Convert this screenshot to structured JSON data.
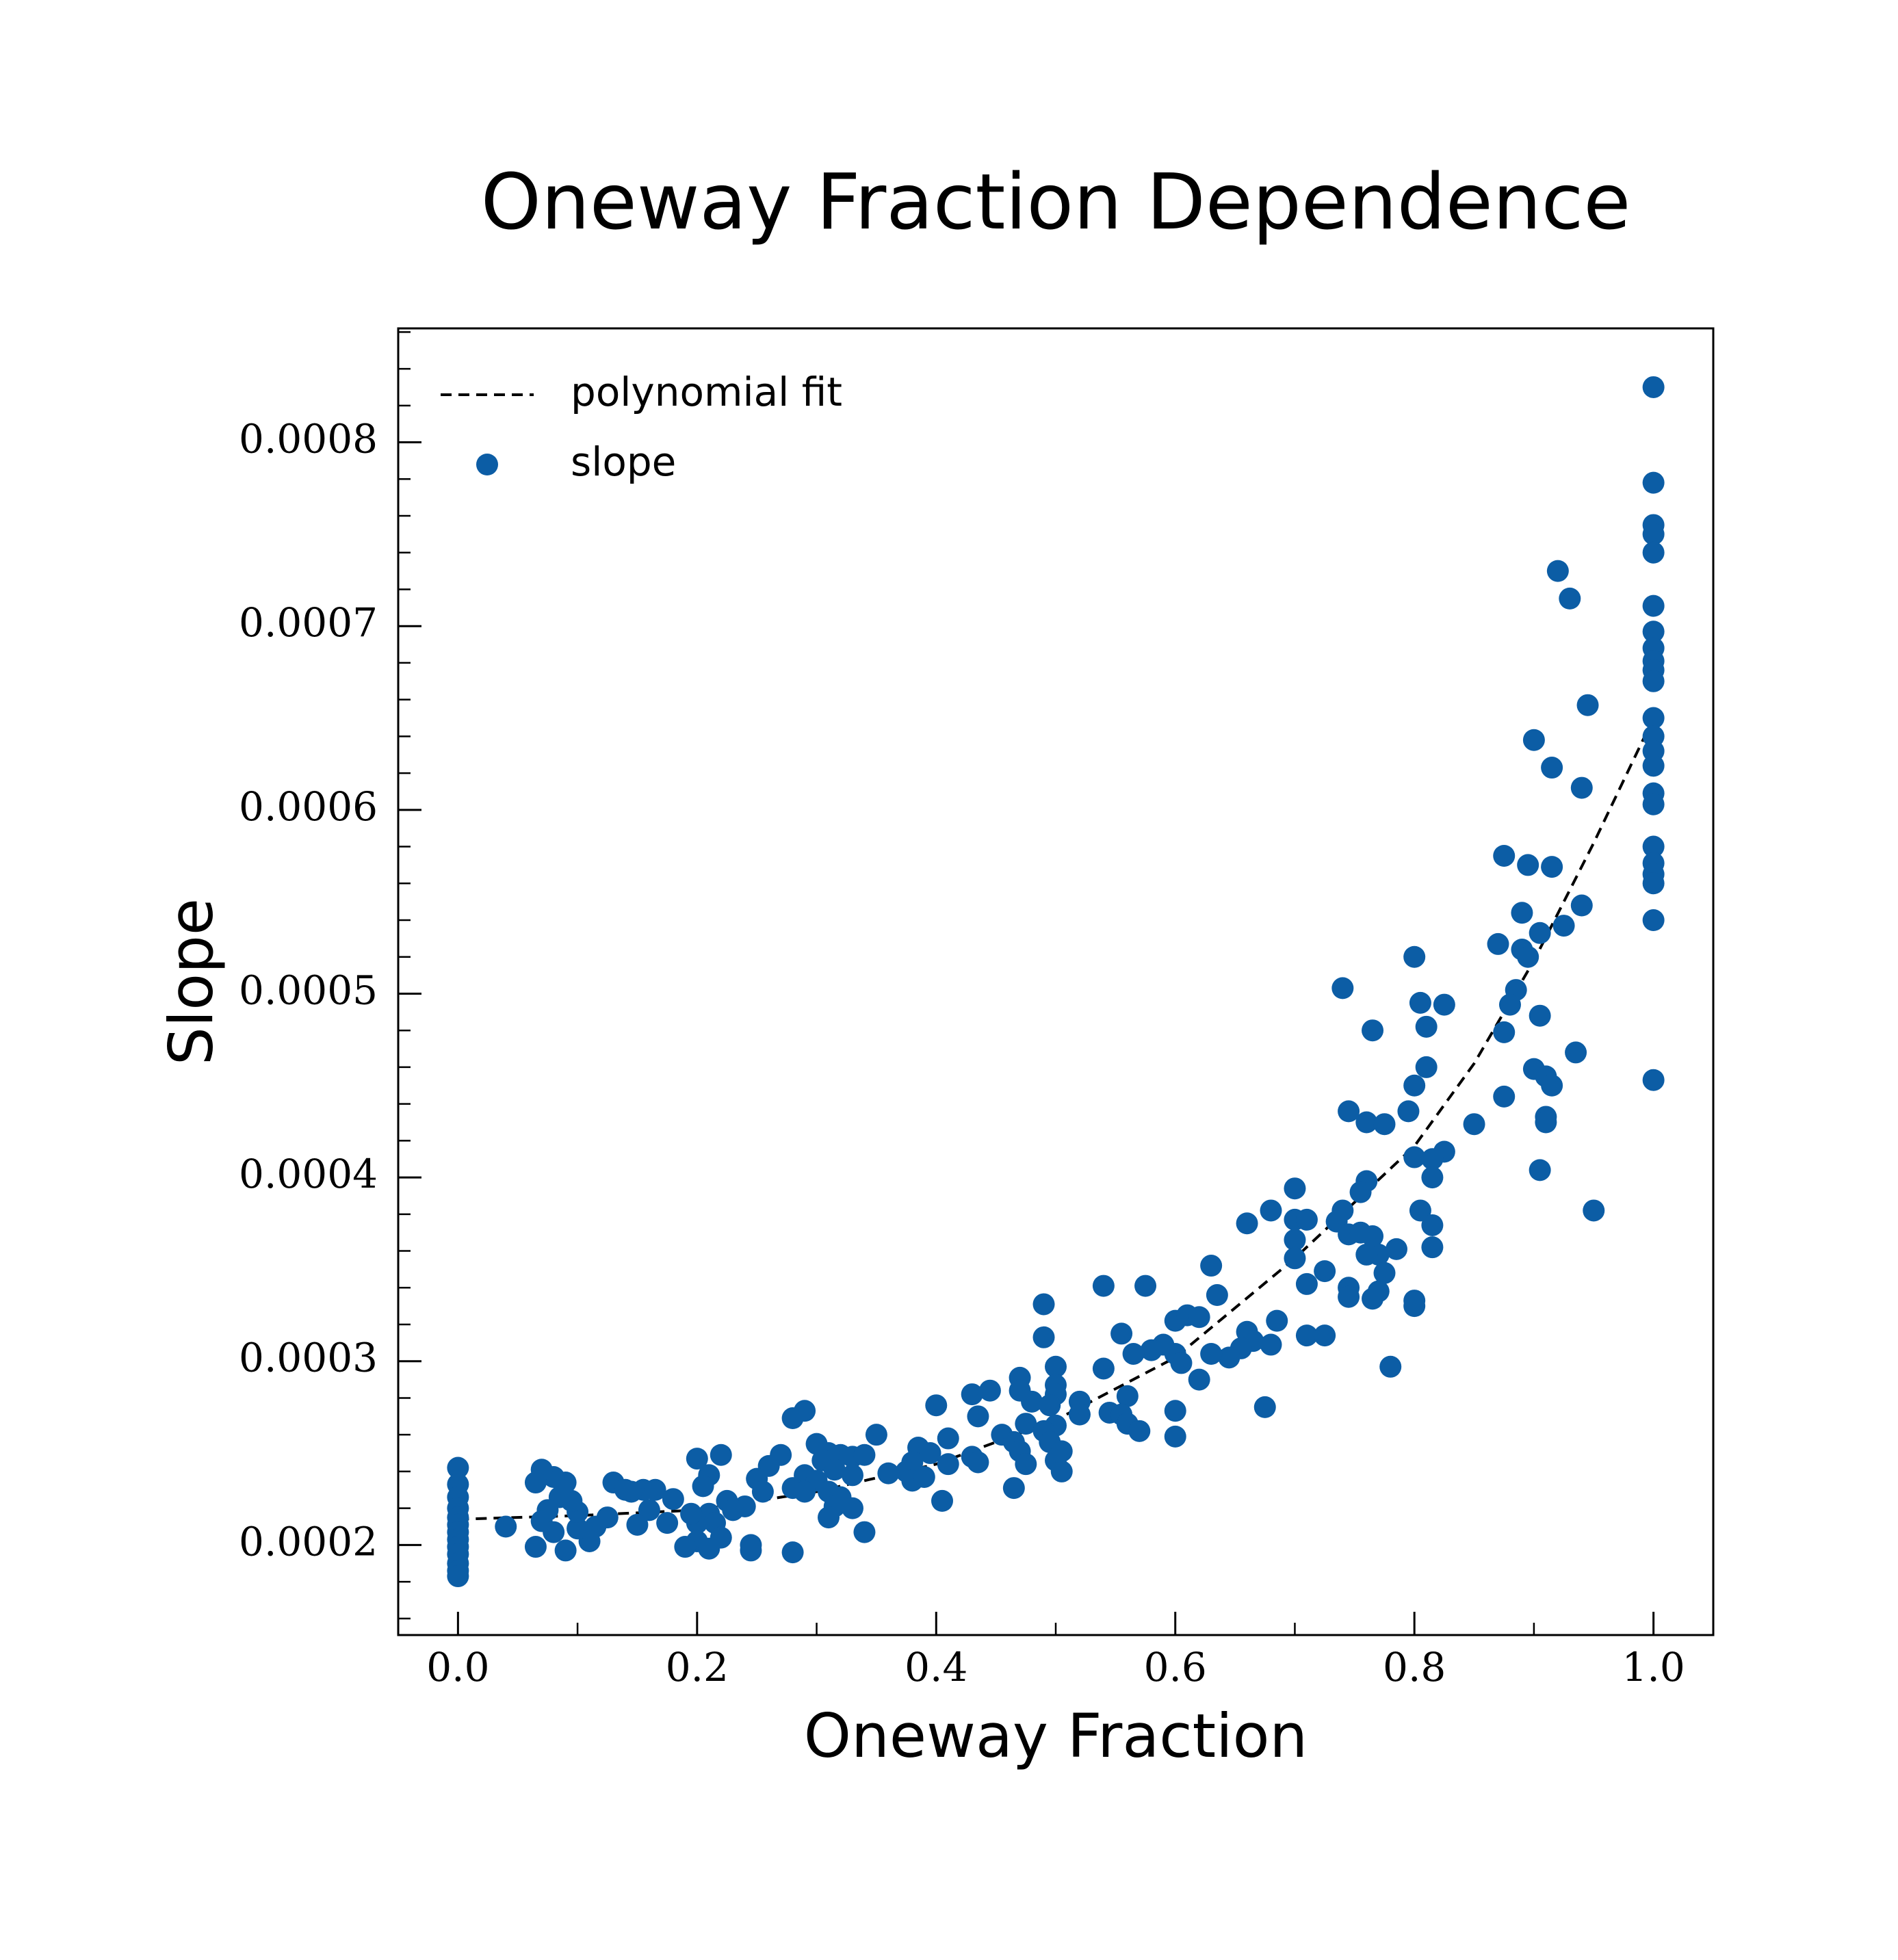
{
  "chart_data": {
    "type": "scatter",
    "title": "Oneway Fraction Dependence",
    "x_label": "Oneway Fraction",
    "y_label": "Slope",
    "xlim": [
      -0.05,
      1.05
    ],
    "ylim": [
      0.000151,
      0.000862
    ],
    "xticks": [
      {
        "value": 0,
        "label": "0.0"
      },
      0.2,
      0.4,
      0.6,
      0.8,
      {
        "value": 1,
        "label": "1.0"
      }
    ],
    "yticks": [
      0.0002,
      0.0003,
      0.0004,
      0.0005,
      0.0006,
      0.0007,
      0.0008
    ],
    "minor_ticks": true,
    "grid": false,
    "legend": "upper left",
    "series": [
      {
        "name": "polynomial fit",
        "type": "line",
        "dashed": true,
        "color": "#000000",
        "x": [
          0,
          0.1,
          0.2,
          0.3,
          0.4,
          0.5,
          0.6,
          0.7,
          0.8,
          0.85,
          0.9,
          0.95,
          1
        ],
        "values": [
          0.000214,
          0.000216,
          0.000219,
          0.000229,
          0.000244,
          0.000268,
          0.000302,
          0.000356,
          0.000417,
          0.000462,
          0.000518,
          0.000582,
          0.00065
        ]
      },
      {
        "name": "slope",
        "type": "scatter",
        "color": "#0c5da5",
        "x": [
          0,
          0,
          0,
          0,
          0,
          0,
          0,
          0,
          0,
          0,
          0,
          0,
          0,
          1,
          1,
          1,
          1,
          1,
          1,
          1,
          1,
          1,
          1,
          1,
          1,
          1,
          1,
          1,
          1,
          1,
          1,
          1,
          1,
          1,
          1,
          1,
          0.92,
          0.93,
          0.945,
          0.9,
          0.915,
          0.94,
          0.875,
          0.895,
          0.915,
          0.94,
          0.925,
          0.89,
          0.905,
          0.87,
          0.89,
          0.895,
          0.885,
          0.88,
          0.905,
          0.875,
          0.935,
          0.9,
          0.91,
          0.915,
          0.875,
          0.91,
          0.91,
          0.85,
          0.905,
          0.95,
          0.8,
          0.805,
          0.825,
          0.81,
          0.74,
          0.765,
          0.81,
          0.8,
          0.745,
          0.795,
          0.76,
          0.775,
          0.825,
          0.8,
          0.815,
          0.815,
          0.76,
          0.755,
          0.7,
          0.68,
          0.74,
          0.805,
          0.7,
          0.71,
          0.735,
          0.815,
          0.66,
          0.745,
          0.755,
          0.765,
          0.7,
          0.785,
          0.815,
          0.77,
          0.7,
          0.76,
          0.63,
          0.725,
          0.775,
          0.745,
          0.71,
          0.77,
          0.765,
          0.8,
          0.8,
          0.745,
          0.685,
          0.635,
          0.66,
          0.665,
          0.68,
          0.655,
          0.645,
          0.71,
          0.725,
          0.78,
          0.675,
          0.54,
          0.575,
          0.49,
          0.6,
          0.61,
          0.62,
          0.555,
          0.49,
          0.59,
          0.6,
          0.58,
          0.565,
          0.605,
          0.63,
          0.54,
          0.5,
          0.47,
          0.5,
          0.62,
          0.545,
          0.5,
          0.48,
          0.445,
          0.43,
          0.47,
          0.56,
          0.52,
          0.495,
          0.4,
          0.6,
          0.52,
          0.555,
          0.435,
          0.475,
          0.5,
          0.56,
          0.49,
          0.57,
          0.6,
          0.455,
          0.35,
          0.41,
          0.465,
          0.495,
          0.505,
          0.385,
          0.395,
          0.43,
          0.47,
          0.5,
          0.435,
          0.38,
          0.375,
          0.36,
          0.505,
          0.475,
          0.465,
          0.405,
          0.38,
          0.39,
          0.41,
          0.28,
          0.29,
          0.3,
          0.32,
          0.31,
          0.33,
          0.34,
          0.27,
          0.305,
          0.26,
          0.315,
          0.33,
          0.29,
          0.25,
          0.3,
          0.28,
          0.31,
          0.32,
          0.29,
          0.315,
          0.33,
          0.31,
          0.34,
          0.255,
          0.22,
          0.2,
          0.21,
          0.205,
          0.225,
          0.24,
          0.23,
          0.21,
          0.2,
          0.195,
          0.215,
          0.22,
          0.2,
          0.21,
          0.245,
          0.19,
          0.245,
          0.28,
          0.18,
          0.175,
          0.16,
          0.155,
          0.165,
          0.145,
          0.13,
          0.14,
          0.125,
          0.15,
          0.115,
          0.11,
          0.1,
          0.1,
          0.095,
          0.09,
          0.08,
          0.07,
          0.065,
          0.085,
          0.075,
          0.07,
          0.08,
          0.065,
          0.09,
          0.04
        ],
        "values": [
          0.000242,
          0.000233,
          0.000226,
          0.00022,
          0.000215,
          0.000211,
          0.000207,
          0.000203,
          0.000199,
          0.000195,
          0.00019,
          0.000186,
          0.000183,
          0.00083,
          0.000778,
          0.000755,
          0.00075,
          0.00074,
          0.000711,
          0.000697,
          0.000688,
          0.000681,
          0.000676,
          0.00067,
          0.00065,
          0.00064,
          0.000632,
          0.000624,
          0.000609,
          0.000603,
          0.00058,
          0.000571,
          0.000565,
          0.00056,
          0.00054,
          0.000453,
          0.00073,
          0.000715,
          0.000657,
          0.000638,
          0.000623,
          0.000612,
          0.000575,
          0.00057,
          0.000569,
          0.000548,
          0.000537,
          0.000544,
          0.000533,
          0.000527,
          0.000524,
          0.00052,
          0.000502,
          0.000494,
          0.000488,
          0.000479,
          0.000468,
          0.000459,
          0.000455,
          0.00045,
          0.000444,
          0.000433,
          0.00043,
          0.000429,
          0.000404,
          0.000382,
          0.00052,
          0.000495,
          0.000494,
          0.000482,
          0.000503,
          0.00048,
          0.00046,
          0.00045,
          0.000436,
          0.000436,
          0.00043,
          0.000429,
          0.000414,
          0.000411,
          0.00041,
          0.0004,
          0.000398,
          0.000392,
          0.000394,
          0.000382,
          0.000382,
          0.000382,
          0.000377,
          0.000377,
          0.000376,
          0.000374,
          0.000375,
          0.000369,
          0.00037,
          0.000368,
          0.000366,
          0.000361,
          0.000362,
          0.000358,
          0.000356,
          0.000358,
          0.000352,
          0.000349,
          0.000348,
          0.00034,
          0.000342,
          0.000338,
          0.000334,
          0.000333,
          0.00033,
          0.000335,
          0.000322,
          0.000336,
          0.000316,
          0.000311,
          0.000309,
          0.000307,
          0.000302,
          0.000314,
          0.000314,
          0.000297,
          0.000275,
          0.000341,
          0.000341,
          0.000331,
          0.000322,
          0.000325,
          0.000324,
          0.000315,
          0.000313,
          0.000309,
          0.000304,
          0.000306,
          0.000304,
          0.000299,
          0.000304,
          0.000296,
          0.000297,
          0.000291,
          0.000287,
          0.00029,
          0.000272,
          0.000282,
          0.000278,
          0.000284,
          0.000282,
          0.000284,
          0.000281,
          0.000278,
          0.000276,
          0.000276,
          0.000273,
          0.000271,
          0.000271,
          0.00027,
          0.000266,
          0.000265,
          0.000266,
          0.000262,
          0.000262,
          0.000259,
          0.00026,
          0.00026,
          0.000258,
          0.000256,
          0.000256,
          0.000251,
          0.000253,
          0.00025,
          0.000248,
          0.000251,
          0.000246,
          0.000245,
          0.000245,
          0.00024,
          0.000239,
          0.00024,
          0.000244,
          0.000231,
          0.000224,
          0.000235,
          0.000237,
          0.000244,
          0.000269,
          0.000273,
          0.000255,
          0.000249,
          0.00025,
          0.000248,
          0.000249,
          0.000249,
          0.000246,
          0.000243,
          0.000241,
          0.000238,
          0.000238,
          0.000236,
          0.000235,
          0.000231,
          0.000229,
          0.000226,
          0.000229,
          0.000221,
          0.00022,
          0.000215,
          0.000207,
          0.000229,
          0.000249,
          0.000247,
          0.000238,
          0.000232,
          0.000224,
          0.000221,
          0.000219,
          0.000217,
          0.000212,
          0.000217,
          0.000212,
          0.000204,
          0.000202,
          0.000198,
          0.0002,
          0.000199,
          0.000197,
          0.000196,
          0.000225,
          0.000212,
          0.000219,
          0.00023,
          0.00023,
          0.000229,
          0.000234,
          0.00023,
          0.000215,
          0.000211,
          0.00021,
          0.000202,
          0.000209,
          0.000218,
          0.000224,
          0.000234,
          0.000237,
          0.000241,
          0.000234,
          0.000226,
          0.000219,
          0.000213,
          0.000207,
          0.000199,
          0.000197,
          0.00021
        ]
      }
    ]
  }
}
